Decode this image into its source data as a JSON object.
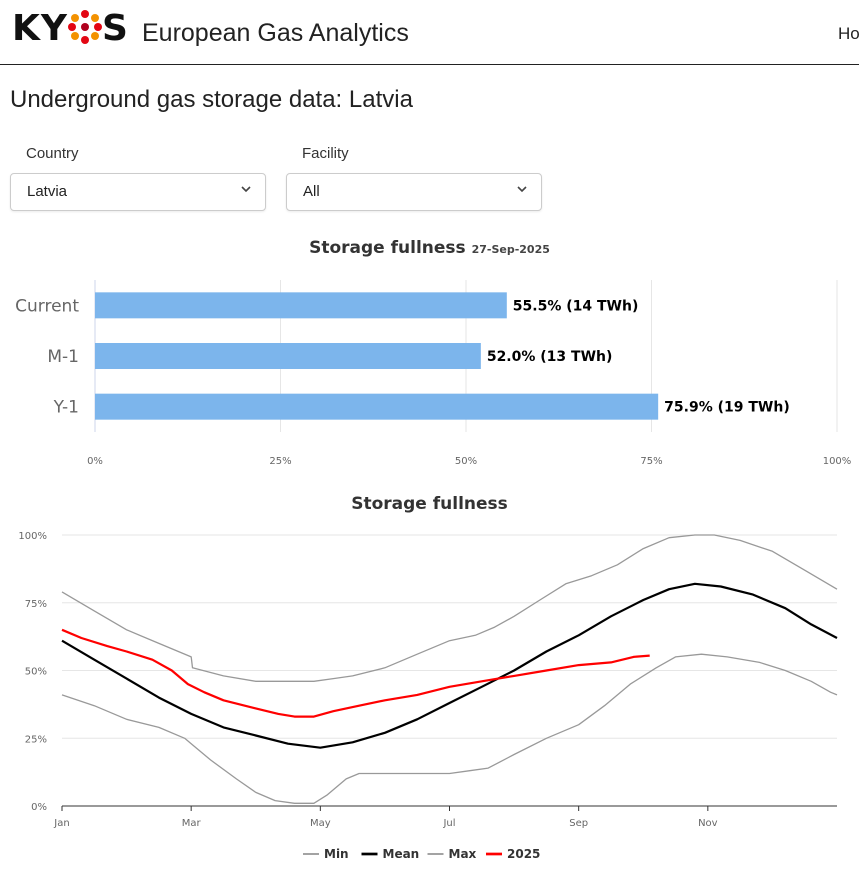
{
  "header": {
    "logo_text": "KYOS",
    "app_title": "European Gas Analytics",
    "nav_home": "Ho"
  },
  "page_title": "Underground gas storage data: Latvia",
  "filters": {
    "country_label": "Country",
    "country_value": "Latvia",
    "facility_label": "Facility",
    "facility_value": "All"
  },
  "chart_data": [
    {
      "type": "bar",
      "title": "Storage fullness",
      "subtitle": "27-Sep-2025",
      "orientation": "horizontal",
      "categories": [
        "Current",
        "M-1",
        "Y-1"
      ],
      "values": [
        55.5,
        52.0,
        75.9
      ],
      "data_labels": [
        "55.5% (14 TWh)",
        "52.0% (13 TWh)",
        "75.9% (19 TWh)"
      ],
      "xlim": [
        0,
        100
      ],
      "x_ticks": [
        "0%",
        "25%",
        "50%",
        "75%",
        "100%"
      ],
      "grid": true,
      "color": "#7cb5ec"
    },
    {
      "type": "line",
      "title": "Storage fullness",
      "x_ticks": [
        "Jan",
        "Mar",
        "May",
        "Jul",
        "Sep",
        "Nov"
      ],
      "y_ticks": [
        "0%",
        "25%",
        "50%",
        "75%",
        "100%"
      ],
      "ylim": [
        0,
        100
      ],
      "xlim_month": [
        1,
        13
      ],
      "legend_position": "bottom",
      "grid": true,
      "series": [
        {
          "name": "Min",
          "color": "#999999",
          "points": [
            [
              1,
              41
            ],
            [
              1.5,
              37
            ],
            [
              2,
              32
            ],
            [
              2.5,
              29
            ],
            [
              2.9,
              25
            ],
            [
              3,
              23
            ],
            [
              3.3,
              17
            ],
            [
              3.7,
              10
            ],
            [
              4,
              5
            ],
            [
              4.3,
              2
            ],
            [
              4.6,
              1
            ],
            [
              4.9,
              1
            ],
            [
              5.1,
              4
            ],
            [
              5.4,
              10
            ],
            [
              5.6,
              12
            ],
            [
              6,
              12
            ],
            [
              6.5,
              12
            ],
            [
              7,
              12
            ],
            [
              7.3,
              13
            ],
            [
              7.6,
              14
            ],
            [
              8,
              19
            ],
            [
              8.5,
              25
            ],
            [
              9,
              30
            ],
            [
              9.4,
              37
            ],
            [
              9.8,
              45
            ],
            [
              10.2,
              51
            ],
            [
              10.5,
              55
            ],
            [
              10.9,
              56
            ],
            [
              11.3,
              55
            ],
            [
              11.8,
              53
            ],
            [
              12.2,
              50
            ],
            [
              12.6,
              46
            ],
            [
              12.9,
              42
            ],
            [
              13,
              41
            ]
          ]
        },
        {
          "name": "Mean",
          "color": "#000000",
          "points": [
            [
              1,
              61
            ],
            [
              1.5,
              54
            ],
            [
              2,
              47
            ],
            [
              2.5,
              40
            ],
            [
              3,
              34
            ],
            [
              3.5,
              29
            ],
            [
              4,
              26
            ],
            [
              4.5,
              23
            ],
            [
              5,
              21.5
            ],
            [
              5.5,
              23.5
            ],
            [
              6,
              27
            ],
            [
              6.5,
              32
            ],
            [
              7,
              38
            ],
            [
              7.5,
              44
            ],
            [
              8,
              50
            ],
            [
              8.5,
              57
            ],
            [
              9,
              63
            ],
            [
              9.5,
              70
            ],
            [
              10,
              76
            ],
            [
              10.4,
              80
            ],
            [
              10.8,
              82
            ],
            [
              11.2,
              81
            ],
            [
              11.7,
              78
            ],
            [
              12.2,
              73
            ],
            [
              12.6,
              67
            ],
            [
              13,
              62
            ]
          ]
        },
        {
          "name": "Max",
          "color": "#999999",
          "points": [
            [
              1,
              79
            ],
            [
              1.5,
              72
            ],
            [
              2,
              65
            ],
            [
              2.5,
              60
            ],
            [
              3,
              55
            ],
            [
              3.02,
              51
            ],
            [
              3.5,
              48
            ],
            [
              4,
              46
            ],
            [
              4.5,
              46
            ],
            [
              4.9,
              46
            ],
            [
              5.2,
              47
            ],
            [
              5.5,
              48
            ],
            [
              6,
              51
            ],
            [
              6.5,
              56
            ],
            [
              7,
              61
            ],
            [
              7.4,
              63
            ],
            [
              7.7,
              66
            ],
            [
              8,
              70
            ],
            [
              8.4,
              76
            ],
            [
              8.8,
              82
            ],
            [
              9.2,
              85
            ],
            [
              9.6,
              89
            ],
            [
              10,
              95
            ],
            [
              10.4,
              99
            ],
            [
              10.8,
              100
            ],
            [
              11.1,
              100
            ],
            [
              11.5,
              98
            ],
            [
              12,
              94
            ],
            [
              12.5,
              87
            ],
            [
              13,
              80
            ]
          ]
        },
        {
          "name": "2025",
          "color": "#ff0000",
          "points": [
            [
              1,
              65
            ],
            [
              1.3,
              62
            ],
            [
              1.7,
              59
            ],
            [
              2,
              57
            ],
            [
              2.4,
              54
            ],
            [
              2.7,
              50
            ],
            [
              2.95,
              45
            ],
            [
              3.2,
              42
            ],
            [
              3.5,
              39
            ],
            [
              4,
              36
            ],
            [
              4.35,
              34
            ],
            [
              4.6,
              33
            ],
            [
              4.9,
              33
            ],
            [
              5.2,
              35
            ],
            [
              5.6,
              37
            ],
            [
              6,
              39
            ],
            [
              6.5,
              41
            ],
            [
              7,
              44
            ],
            [
              7.5,
              46
            ],
            [
              8,
              48
            ],
            [
              8.5,
              50
            ],
            [
              9,
              52
            ],
            [
              9.5,
              53
            ],
            [
              9.85,
              55
            ],
            [
              10.1,
              55.5
            ]
          ]
        }
      ]
    }
  ]
}
